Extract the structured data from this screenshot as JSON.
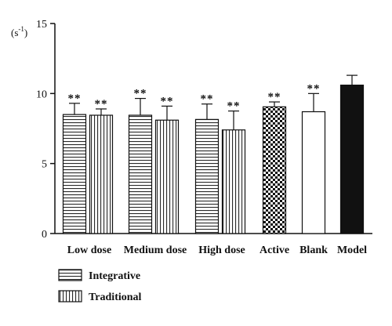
{
  "chart_data": {
    "type": "bar",
    "unit": "(s",
    "unit_superscript": "-1",
    "unit_close": ")",
    "ylim": [
      0,
      15
    ],
    "yticks": [
      "0",
      "5",
      "10",
      "15"
    ],
    "categories": [
      "Low dose",
      "Medium dose",
      "High dose",
      "Active",
      "Blank",
      "Model"
    ],
    "series": [
      {
        "name": "Integrative",
        "pattern": "horizontal-stripes",
        "values": [
          8.5,
          8.45,
          8.15,
          null,
          null,
          null
        ],
        "errors": [
          0.8,
          1.2,
          1.1,
          null,
          null,
          null
        ],
        "labels": [
          "**",
          "**",
          "**",
          null,
          null,
          null
        ]
      },
      {
        "name": "Traditional",
        "pattern": "vertical-stripes",
        "values": [
          8.45,
          8.1,
          7.4,
          null,
          null,
          null
        ],
        "errors": [
          0.45,
          1.0,
          1.35,
          null,
          null,
          null
        ],
        "labels": [
          "**",
          "**",
          "**",
          null,
          null,
          null
        ]
      }
    ],
    "single_bars": [
      {
        "category": "Active",
        "value": 9.05,
        "error": 0.35,
        "label": "**",
        "pattern": "checker"
      },
      {
        "category": "Blank",
        "value": 8.7,
        "error": 1.3,
        "label": "**",
        "pattern": "white"
      },
      {
        "category": "Model",
        "value": 10.6,
        "error": 0.7,
        "label": "",
        "pattern": "black"
      }
    ],
    "legend": {
      "placement": "bottom-left",
      "entries": [
        {
          "label": "Integrative",
          "pattern": "horizontal-stripes"
        },
        {
          "label": "Traditional",
          "pattern": "vertical-stripes"
        }
      ]
    },
    "grid": false,
    "colors": {
      "ink": "#111111",
      "fill_white": "#ffffff",
      "fill_black": "#111111"
    }
  }
}
